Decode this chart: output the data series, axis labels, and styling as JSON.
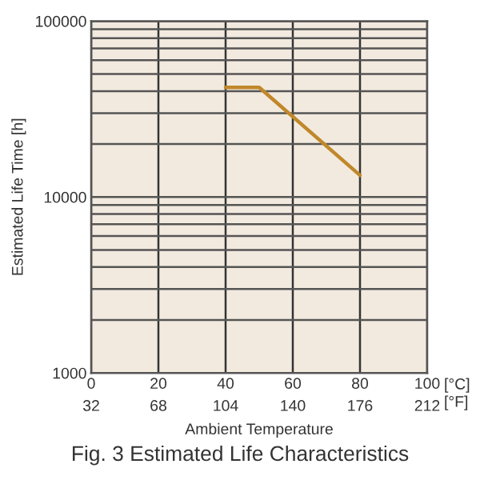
{
  "chart_data": {
    "type": "line",
    "title": "Fig. 3 Estimated Life Characteristics",
    "xlabel": "Ambient Temperature",
    "ylabel": "Estimated Life Time [h]",
    "x": [
      40,
      50,
      80
    ],
    "series": [
      {
        "color": "#c0882a",
        "values": [
          42000,
          42000,
          13300
        ]
      }
    ],
    "log": "y",
    "xlim": [
      0,
      100
    ],
    "xticks": [
      0,
      20,
      40,
      60,
      80,
      100
    ],
    "x2lim": [
      32,
      212
    ],
    "x2ticks": [
      32,
      68,
      104,
      140,
      176,
      212
    ],
    "ylim": [
      1000,
      100000
    ],
    "yticks": [
      1000,
      10000,
      100000
    ],
    "annotations": [
      "[°C]",
      "[°F]"
    ],
    "grid": true,
    "marker": "none",
    "line_style": "solid"
  }
}
